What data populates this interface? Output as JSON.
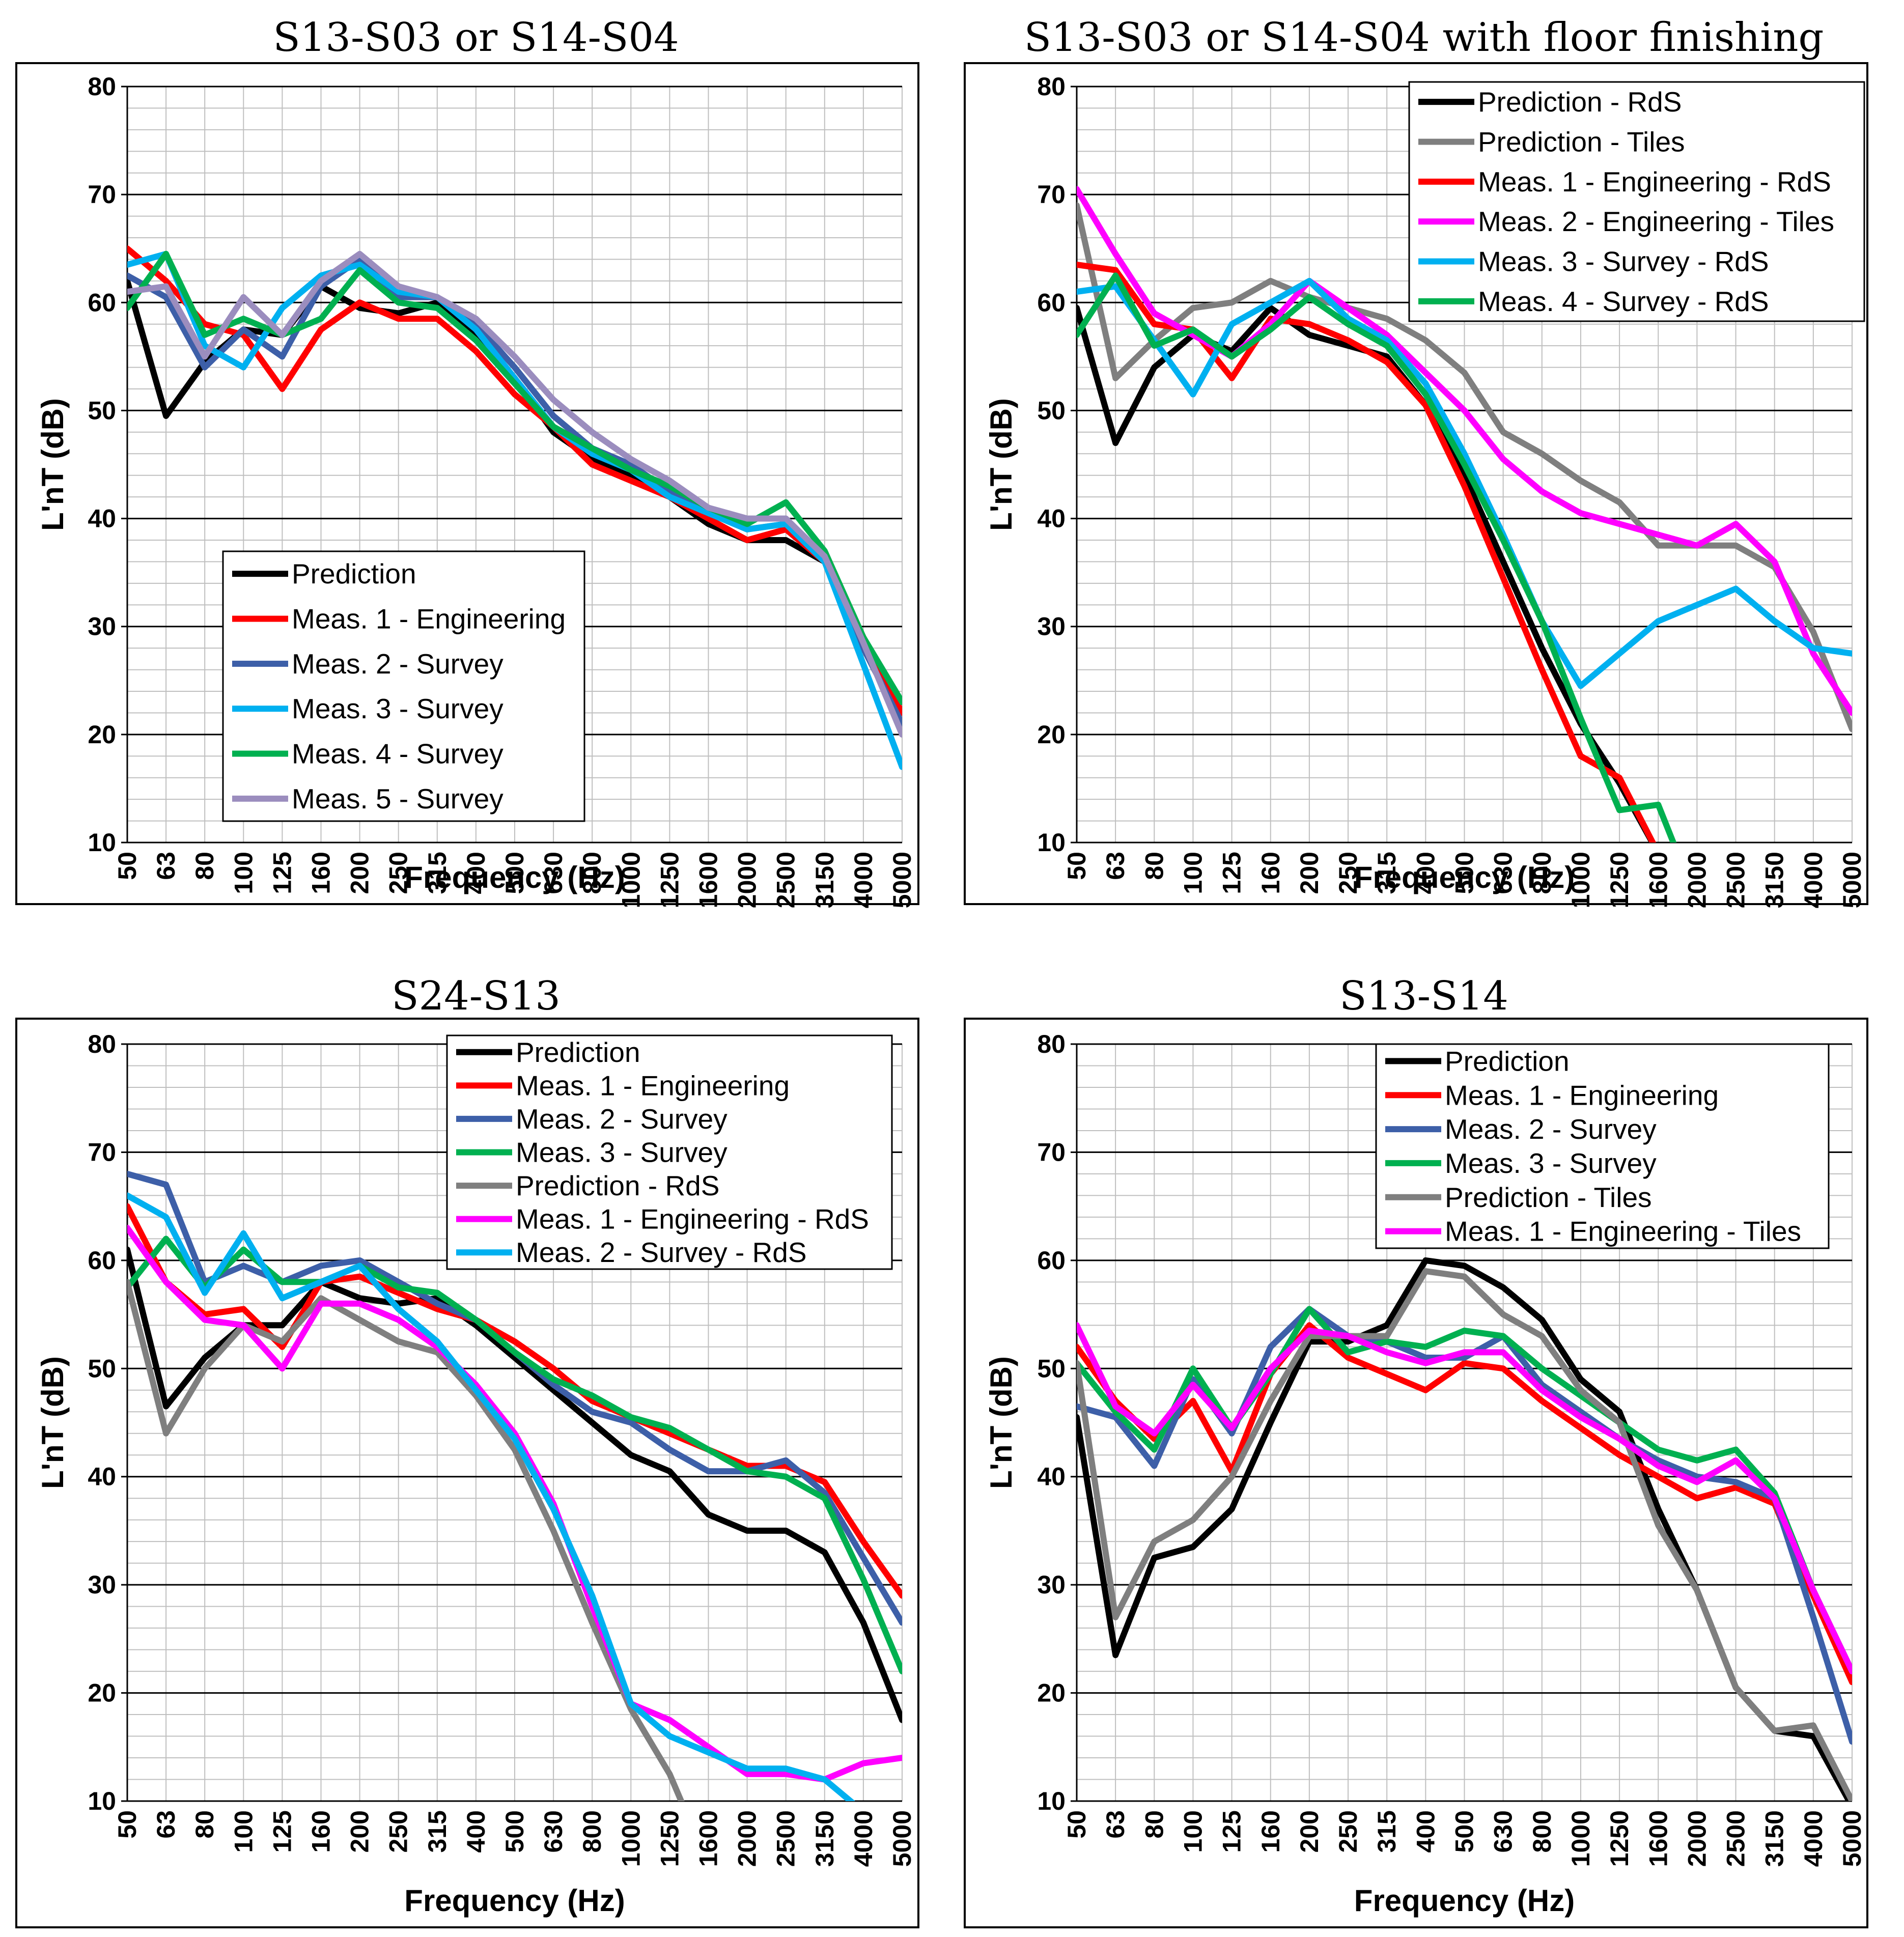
{
  "chart_data": [
    {
      "type": "line",
      "title": "S13-S03 or S14-S04",
      "xlabel": "Frequency (Hz)",
      "ylabel": "L'nT (dB)",
      "ylim": [
        10,
        80
      ],
      "grid": true,
      "legend_position": "bottom-left",
      "categories": [
        "50",
        "63",
        "80",
        "100",
        "125",
        "160",
        "200",
        "250",
        "315",
        "400",
        "500",
        "630",
        "800",
        "1000",
        "1250",
        "1600",
        "2000",
        "2500",
        "3150",
        "4000",
        "5000"
      ],
      "series": [
        {
          "name": "Prediction",
          "color": "#000000",
          "values": [
            62.0,
            49.5,
            54.5,
            57.5,
            57.0,
            61.5,
            59.5,
            59.0,
            60.0,
            57.0,
            53.0,
            48.0,
            45.5,
            44.0,
            42.0,
            39.5,
            38.0,
            38.0,
            36.0,
            28.0,
            21.0
          ]
        },
        {
          "name": "Meas. 1 - Engineering",
          "color": "#FF0000",
          "values": [
            65.0,
            62.0,
            58.0,
            57.0,
            52.0,
            57.5,
            60.0,
            58.5,
            58.5,
            55.5,
            51.5,
            48.5,
            45.0,
            43.5,
            42.0,
            40.0,
            38.0,
            39.0,
            36.0,
            29.0,
            22.0
          ]
        },
        {
          "name": "Meas. 2 - Survey",
          "color": "#3D5FA8",
          "values": [
            62.5,
            60.5,
            54.0,
            57.5,
            55.0,
            61.5,
            64.0,
            60.5,
            60.5,
            58.0,
            54.0,
            49.5,
            46.5,
            45.0,
            42.5,
            40.5,
            39.0,
            39.5,
            36.0,
            28.0,
            21.0
          ]
        },
        {
          "name": "Meas. 3 - Survey",
          "color": "#00B0F0",
          "values": [
            63.5,
            64.5,
            56.0,
            54.0,
            59.5,
            62.5,
            63.5,
            61.0,
            60.5,
            57.5,
            53.0,
            48.5,
            46.0,
            44.5,
            42.0,
            40.5,
            39.0,
            39.5,
            36.0,
            26.5,
            17.0
          ]
        },
        {
          "name": "Meas. 4 - Survey",
          "color": "#00B050",
          "values": [
            59.5,
            64.5,
            57.0,
            58.5,
            57.0,
            58.5,
            63.0,
            60.0,
            59.5,
            56.5,
            52.5,
            48.5,
            46.5,
            44.5,
            43.0,
            41.0,
            39.5,
            41.5,
            37.0,
            29.0,
            23.0
          ]
        },
        {
          "name": "Meas. 5 - Survey",
          "color": "#9B8DBE",
          "values": [
            61.0,
            61.5,
            55.0,
            60.5,
            57.0,
            62.0,
            64.5,
            61.5,
            60.5,
            58.5,
            55.0,
            51.0,
            48.0,
            45.5,
            43.5,
            41.0,
            40.0,
            40.0,
            36.5,
            28.5,
            20.0
          ]
        }
      ]
    },
    {
      "type": "line",
      "title": "S13-S03 or S14-S04 with floor finishing",
      "xlabel": "Frequency (Hz)",
      "ylabel": "L'nT (dB)",
      "ylim": [
        10,
        80
      ],
      "grid": true,
      "legend_position": "top-right",
      "categories": [
        "50",
        "63",
        "80",
        "100",
        "125",
        "160",
        "200",
        "250",
        "315",
        "400",
        "500",
        "630",
        "800",
        "1000",
        "1250",
        "1600",
        "2000",
        "2500",
        "3150",
        "4000",
        "5000"
      ],
      "series": [
        {
          "name": "Prediction - RdS",
          "color": "#000000",
          "values": [
            59.5,
            47.0,
            54.0,
            57.0,
            55.5,
            59.5,
            57.0,
            56.0,
            55.0,
            50.5,
            44.0,
            36.0,
            28.0,
            21.0,
            15.5,
            null,
            null,
            null,
            null,
            null,
            null
          ],
          "extend_to_floor": true
        },
        {
          "name": "Prediction - Tiles",
          "color": "#7F7F7F",
          "values": [
            69.0,
            53.0,
            56.5,
            59.5,
            60.0,
            62.0,
            60.5,
            59.5,
            58.5,
            56.5,
            53.5,
            48.0,
            46.0,
            43.5,
            41.5,
            37.5,
            37.5,
            37.5,
            35.5,
            29.5,
            20.5
          ]
        },
        {
          "name": "Meas. 1 - Engineering - RdS",
          "color": "#FF0000",
          "values": [
            63.5,
            63.0,
            58.0,
            57.5,
            53.0,
            58.5,
            58.0,
            56.5,
            54.5,
            50.5,
            43.0,
            34.5,
            26.0,
            18.0,
            16.0,
            null,
            null,
            null,
            null,
            null,
            null
          ],
          "extend_to_floor": true
        },
        {
          "name": "Meas. 2 - Engineering - Tiles",
          "color": "#FF00FF",
          "values": [
            70.5,
            64.5,
            59.0,
            57.0,
            55.0,
            58.0,
            62.0,
            59.5,
            57.0,
            53.5,
            50.0,
            45.5,
            42.5,
            40.5,
            39.5,
            38.5,
            37.5,
            39.5,
            36.0,
            27.5,
            22.0
          ]
        },
        {
          "name": "Meas. 3 - Survey - RdS",
          "color": "#00B0F0",
          "values": [
            61.0,
            61.5,
            56.5,
            51.5,
            58.0,
            60.0,
            62.0,
            58.5,
            56.5,
            52.5,
            46.0,
            38.5,
            30.5,
            24.5,
            27.5,
            30.5,
            32.0,
            33.5,
            30.5,
            28.0,
            27.5
          ]
        },
        {
          "name": "Meas. 4 - Survey - RdS",
          "color": "#00B050",
          "values": [
            57.0,
            62.5,
            56.0,
            57.5,
            55.0,
            57.5,
            60.5,
            58.0,
            56.0,
            51.5,
            45.0,
            38.0,
            30.5,
            21.5,
            13.0,
            13.5,
            null,
            null,
            null,
            null,
            null
          ],
          "extend_to_floor": true
        }
      ]
    },
    {
      "type": "line",
      "title": "S24-S13",
      "xlabel": "Frequency (Hz)",
      "ylabel": "L'nT (dB)",
      "ylim": [
        10,
        80
      ],
      "grid": true,
      "legend_position": "top-right",
      "categories": [
        "50",
        "63",
        "80",
        "100",
        "125",
        "160",
        "200",
        "250",
        "315",
        "400",
        "500",
        "630",
        "800",
        "1000",
        "1250",
        "1600",
        "2000",
        "2500",
        "3150",
        "4000",
        "5000"
      ],
      "series": [
        {
          "name": "Prediction",
          "color": "#000000",
          "values": [
            61.0,
            46.5,
            51.0,
            54.0,
            54.0,
            58.0,
            56.5,
            56.0,
            56.5,
            54.0,
            51.0,
            48.0,
            45.0,
            42.0,
            40.5,
            36.5,
            35.0,
            35.0,
            33.0,
            26.5,
            17.5
          ]
        },
        {
          "name": "Meas. 1 - Engineering",
          "color": "#FF0000",
          "values": [
            65.0,
            58.0,
            55.0,
            55.5,
            52.0,
            58.0,
            58.5,
            57.0,
            55.5,
            54.5,
            52.5,
            50.0,
            47.0,
            45.5,
            44.0,
            42.5,
            41.0,
            41.0,
            39.5,
            34.0,
            29.0
          ]
        },
        {
          "name": "Meas. 2 - Survey",
          "color": "#3D5FA8",
          "values": [
            68.0,
            67.0,
            58.0,
            59.5,
            58.0,
            59.5,
            60.0,
            58.0,
            56.0,
            54.5,
            51.5,
            48.5,
            46.0,
            45.0,
            42.5,
            40.5,
            40.5,
            41.5,
            38.5,
            32.5,
            26.5
          ]
        },
        {
          "name": "Meas. 3 - Survey",
          "color": "#00B050",
          "values": [
            57.5,
            62.0,
            57.5,
            61.0,
            58.0,
            58.0,
            59.5,
            57.5,
            57.0,
            54.5,
            51.5,
            49.0,
            47.5,
            45.5,
            44.5,
            42.5,
            40.5,
            40.0,
            38.0,
            30.5,
            22.0
          ]
        },
        {
          "name": "Prediction - RdS",
          "color": "#7F7F7F",
          "values": [
            58.0,
            44.0,
            50.0,
            54.0,
            52.5,
            56.5,
            54.5,
            52.5,
            51.5,
            47.5,
            42.5,
            35.0,
            26.5,
            18.5,
            12.5,
            null,
            null,
            null,
            null,
            null,
            null
          ],
          "extend_to_floor": true
        },
        {
          "name": "Meas. 1 - Engineering - RdS",
          "color": "#FF00FF",
          "values": [
            63.0,
            58.0,
            54.5,
            54.0,
            50.0,
            56.0,
            56.0,
            54.5,
            52.0,
            48.5,
            44.0,
            37.5,
            28.0,
            19.0,
            17.5,
            15.0,
            12.5,
            12.5,
            12.0,
            13.5,
            14.0
          ]
        },
        {
          "name": "Meas. 2 - Survey - RdS",
          "color": "#00B0F0",
          "values": [
            66.0,
            64.0,
            57.0,
            62.5,
            56.5,
            58.0,
            59.5,
            55.5,
            52.5,
            48.0,
            43.5,
            37.0,
            29.0,
            19.0,
            16.0,
            14.5,
            13.0,
            13.0,
            12.0,
            null,
            null
          ],
          "extend_to_floor": true
        }
      ]
    },
    {
      "type": "line",
      "title": "S13-S14",
      "xlabel": "Frequency (Hz)",
      "ylabel": "L'nT (dB)",
      "ylim": [
        10,
        80
      ],
      "grid": true,
      "legend_position": "top-right",
      "categories": [
        "50",
        "63",
        "80",
        "100",
        "125",
        "160",
        "200",
        "250",
        "315",
        "400",
        "500",
        "630",
        "800",
        "1000",
        "1250",
        "1600",
        "2000",
        "2500",
        "3150",
        "4000",
        "5000"
      ],
      "series": [
        {
          "name": "Prediction",
          "color": "#000000",
          "values": [
            45.5,
            23.5,
            32.5,
            33.5,
            37.0,
            45.0,
            52.5,
            52.5,
            54.0,
            60.0,
            59.5,
            57.5,
            54.5,
            49.0,
            46.0,
            37.0,
            29.5,
            20.5,
            16.5,
            16.0,
            9.5
          ]
        },
        {
          "name": "Meas. 1 - Engineering",
          "color": "#FF0000",
          "values": [
            52.0,
            47.0,
            43.5,
            47.0,
            40.5,
            49.5,
            54.0,
            51.0,
            49.5,
            48.0,
            50.5,
            50.0,
            47.0,
            44.5,
            42.0,
            40.0,
            38.0,
            39.0,
            37.5,
            29.0,
            21.0
          ]
        },
        {
          "name": "Meas. 2 - Survey",
          "color": "#3D5FA8",
          "values": [
            46.5,
            45.5,
            41.0,
            49.0,
            44.0,
            52.0,
            55.5,
            53.0,
            52.5,
            51.0,
            51.0,
            53.0,
            48.5,
            46.0,
            43.5,
            41.5,
            40.0,
            39.5,
            38.0,
            27.0,
            15.5
          ]
        },
        {
          "name": "Meas. 3 - Survey",
          "color": "#00B050",
          "values": [
            50.5,
            46.0,
            42.5,
            50.0,
            44.5,
            49.5,
            55.5,
            51.5,
            52.5,
            52.0,
            53.5,
            53.0,
            50.0,
            47.5,
            45.0,
            42.5,
            41.5,
            42.5,
            38.5,
            29.5,
            22.0
          ]
        },
        {
          "name": "Prediction - Tiles",
          "color": "#7F7F7F",
          "values": [
            50.5,
            27.0,
            34.0,
            36.0,
            40.0,
            47.0,
            53.0,
            53.0,
            53.0,
            59.0,
            58.5,
            55.0,
            53.0,
            48.0,
            45.0,
            35.5,
            29.5,
            20.5,
            16.5,
            17.0,
            10.0
          ]
        },
        {
          "name": "Meas. 1 - Engineering - Tiles",
          "color": "#FF00FF",
          "values": [
            54.0,
            46.5,
            44.0,
            48.5,
            44.5,
            50.0,
            53.5,
            53.0,
            51.5,
            50.5,
            51.5,
            51.5,
            48.0,
            45.5,
            43.5,
            41.0,
            39.5,
            41.5,
            38.0,
            29.5,
            22.0
          ]
        }
      ]
    }
  ]
}
